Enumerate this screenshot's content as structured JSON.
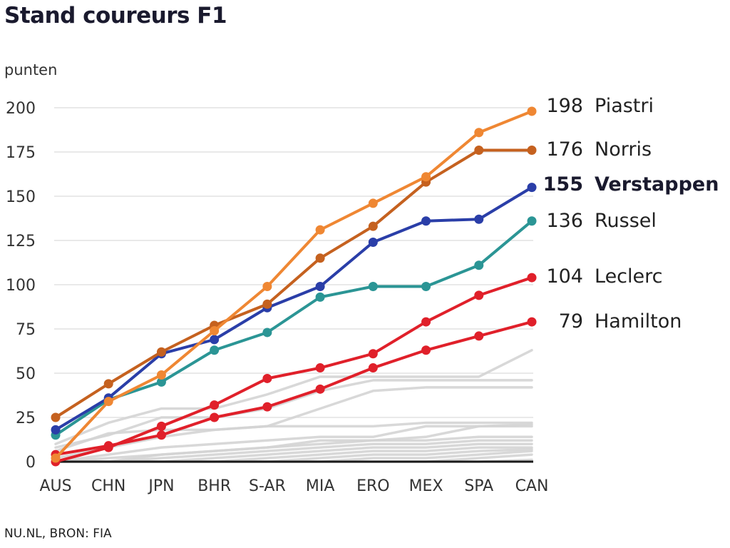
{
  "chart_data": {
    "type": "line",
    "title": "Stand coureurs F1",
    "ylabel": "punten",
    "xlabel": "",
    "source": "NU.NL, BRON: FIA",
    "categories": [
      "AUS",
      "CHN",
      "JPN",
      "BHR",
      "S-AR",
      "MIA",
      "ERO",
      "MEX",
      "SPA",
      "CAN"
    ],
    "ylim": [
      0,
      200
    ],
    "yticks": [
      0,
      25,
      50,
      75,
      100,
      125,
      150,
      175,
      200
    ],
    "grid": true,
    "series": [
      {
        "name": "Piastri",
        "label": "198",
        "color": "#ef8733",
        "bold": false,
        "values": [
          2,
          34,
          49,
          74,
          99,
          131,
          146,
          161,
          186,
          198
        ]
      },
      {
        "name": "Norris",
        "label": "176",
        "color": "#c5611f",
        "bold": false,
        "values": [
          25,
          44,
          62,
          77,
          89,
          115,
          133,
          158,
          176,
          176
        ]
      },
      {
        "name": "Verstappen",
        "label": "155",
        "color": "#2a3ea8",
        "bold": true,
        "values": [
          18,
          36,
          61,
          69,
          87,
          99,
          124,
          136,
          137,
          155
        ]
      },
      {
        "name": "Russel",
        "label": "136",
        "color": "#2b9595",
        "bold": false,
        "values": [
          15,
          35,
          45,
          63,
          73,
          93,
          99,
          99,
          111,
          136
        ]
      },
      {
        "name": "Leclerc",
        "label": "104",
        "color": "#e0202a",
        "bold": false,
        "values": [
          0,
          8,
          20,
          32,
          47,
          53,
          61,
          79,
          94,
          104
        ]
      },
      {
        "name": "Hamilton",
        "label": "79",
        "color": "#e0202a",
        "bold": false,
        "values": [
          4,
          9,
          15,
          25,
          31,
          41,
          53,
          63,
          71,
          79
        ]
      }
    ],
    "background_series": [
      [
        10,
        22,
        30,
        30,
        38,
        48,
        48,
        48,
        48,
        63
      ],
      [
        8,
        15,
        25,
        25,
        30,
        40,
        46,
        46,
        46,
        46
      ],
      [
        2,
        8,
        14,
        18,
        20,
        30,
        40,
        42,
        42,
        42
      ],
      [
        6,
        16,
        18,
        18,
        20,
        20,
        20,
        22,
        22,
        22
      ],
      [
        0,
        4,
        8,
        10,
        12,
        14,
        14,
        20,
        20,
        21
      ],
      [
        0,
        0,
        4,
        6,
        8,
        10,
        12,
        14,
        20,
        20
      ],
      [
        0,
        2,
        4,
        6,
        8,
        12,
        12,
        12,
        14,
        14
      ],
      [
        0,
        0,
        2,
        4,
        6,
        8,
        10,
        10,
        12,
        12
      ],
      [
        0,
        0,
        0,
        2,
        4,
        6,
        8,
        8,
        10,
        10
      ],
      [
        0,
        0,
        0,
        0,
        2,
        4,
        6,
        6,
        8,
        8
      ],
      [
        0,
        0,
        0,
        0,
        0,
        2,
        4,
        4,
        6,
        7
      ],
      [
        0,
        0,
        0,
        0,
        0,
        0,
        2,
        2,
        4,
        6
      ],
      [
        0,
        0,
        0,
        0,
        0,
        0,
        0,
        0,
        2,
        4
      ],
      [
        0,
        0,
        0,
        0,
        0,
        0,
        0,
        0,
        0,
        1
      ]
    ],
    "background_color": "#d4d4d4"
  }
}
